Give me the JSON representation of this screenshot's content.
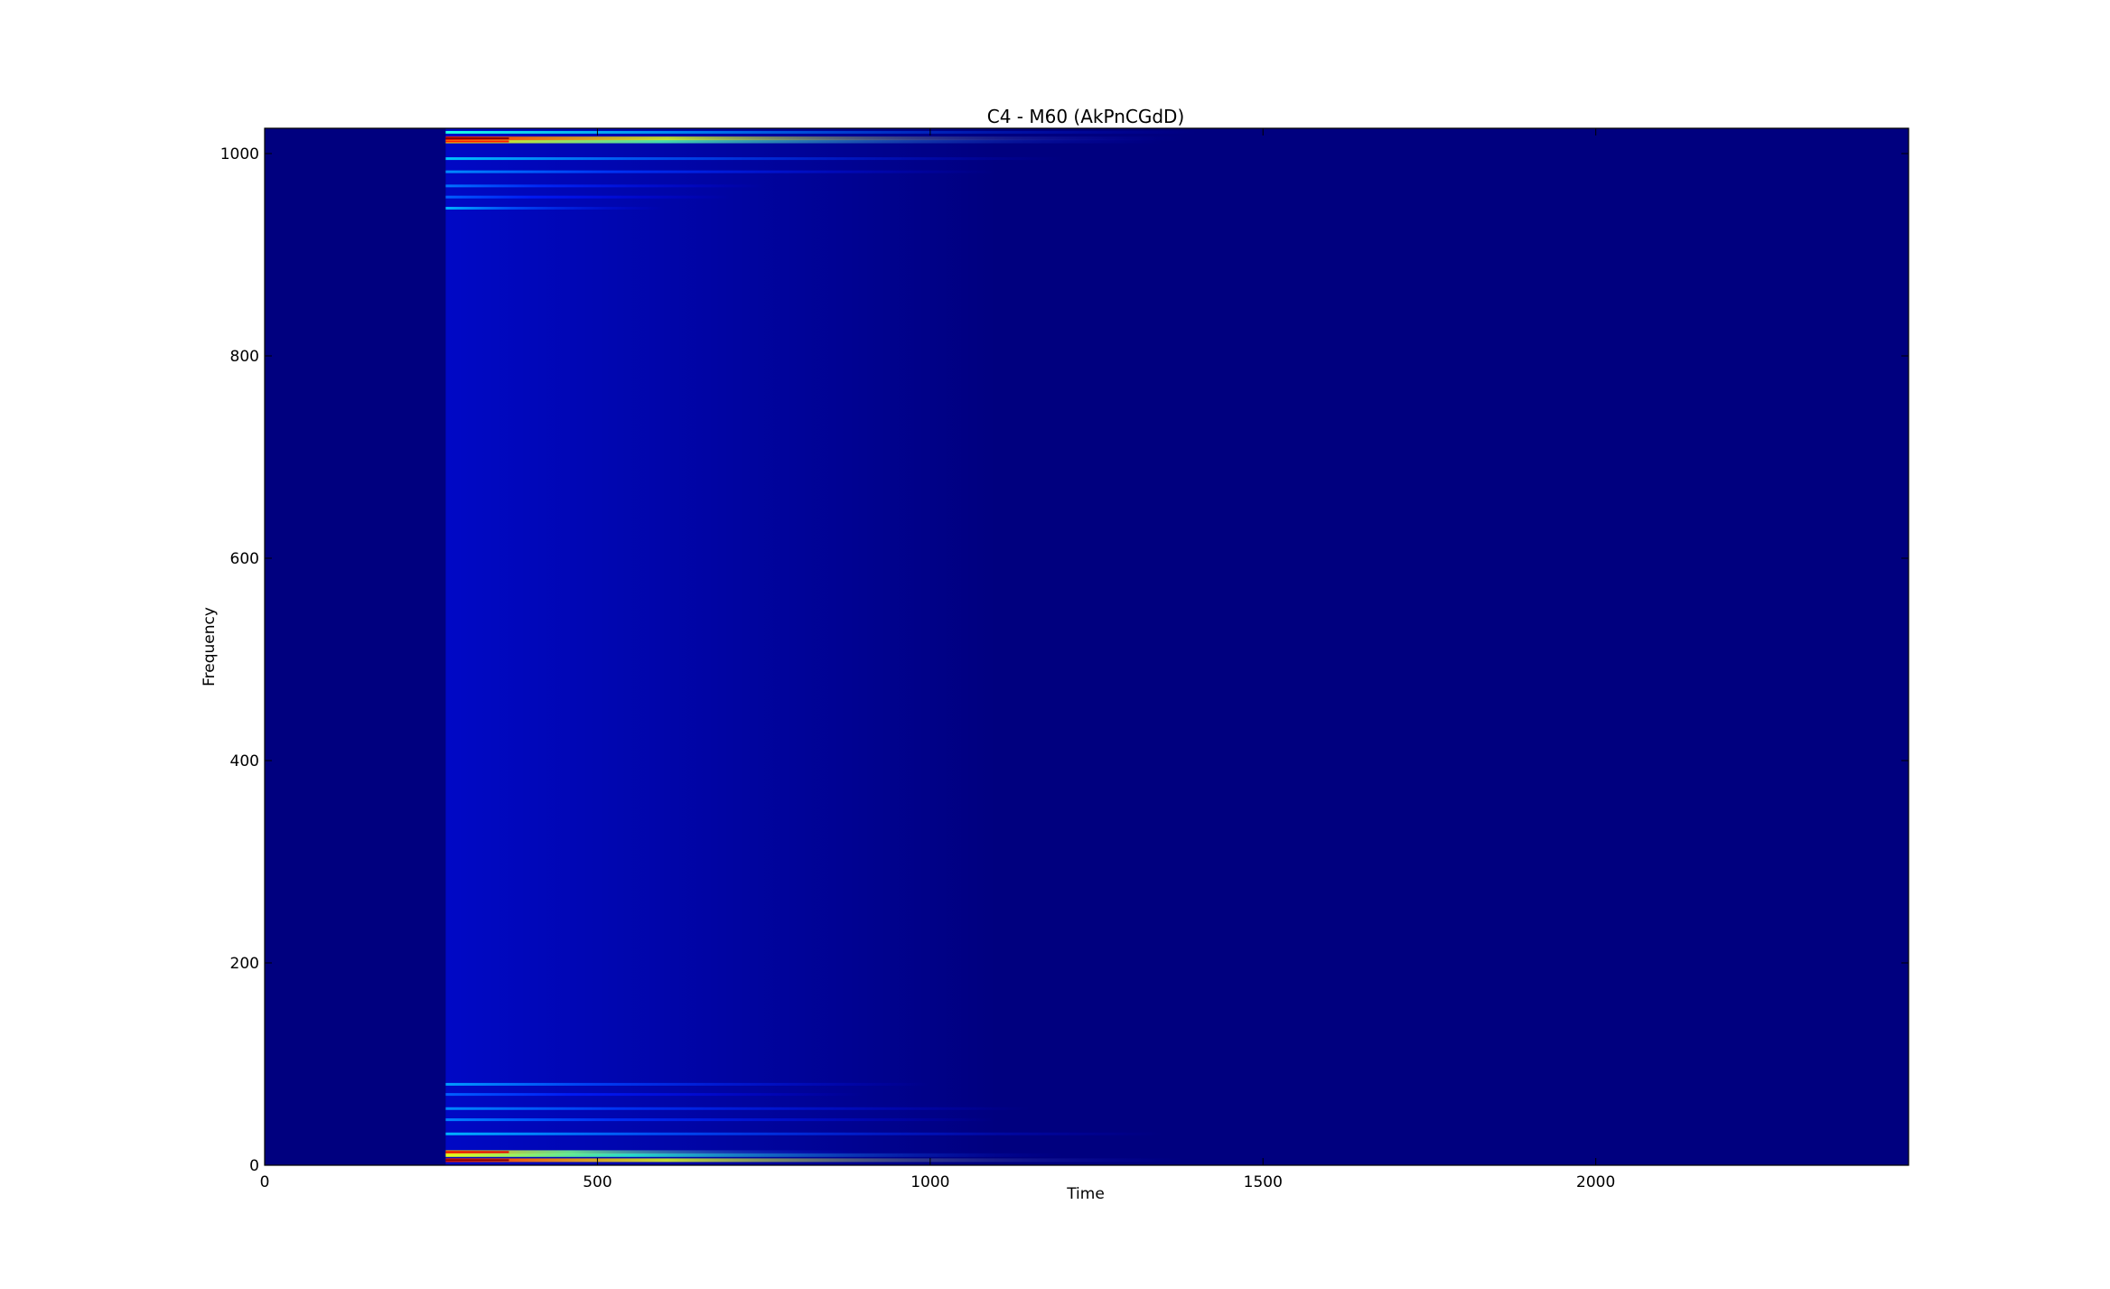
{
  "chart_data": {
    "type": "heatmap",
    "title": "C4 - M60 (AkPnCGdD)",
    "xlabel": "Time",
    "ylabel": "Frequency",
    "xlim": [
      0,
      2470
    ],
    "ylim": [
      0,
      1025
    ],
    "x_ticks": [
      0,
      500,
      1000,
      1500,
      2000
    ],
    "y_ticks": [
      0,
      200,
      400,
      600,
      800,
      1000
    ],
    "x_tick_labels": [
      "0",
      "500",
      "1000",
      "1500",
      "2000"
    ],
    "y_tick_labels": [
      "0",
      "200",
      "400",
      "600",
      "800",
      "1000"
    ],
    "colormap": "jet",
    "background_color": "#00007f",
    "grid": false,
    "onset_time": 272,
    "bands": [
      {
        "freq": 5,
        "start": 272,
        "end": 1380,
        "intensity": 0.85
      },
      {
        "freq": 10,
        "start": 272,
        "end": 1200,
        "intensity": 0.6
      },
      {
        "freq": 13,
        "start": 272,
        "end": 900,
        "intensity": 0.7
      },
      {
        "freq": 31,
        "start": 272,
        "end": 1350,
        "intensity": 0.3
      },
      {
        "freq": 45,
        "start": 272,
        "end": 1100,
        "intensity": 0.25
      },
      {
        "freq": 56,
        "start": 272,
        "end": 1150,
        "intensity": 0.26
      },
      {
        "freq": 70,
        "start": 272,
        "end": 900,
        "intensity": 0.22
      },
      {
        "freq": 80,
        "start": 272,
        "end": 1000,
        "intensity": 0.28
      },
      {
        "freq": 946,
        "start": 272,
        "end": 600,
        "intensity": 0.3
      },
      {
        "freq": 957,
        "start": 272,
        "end": 700,
        "intensity": 0.22
      },
      {
        "freq": 968,
        "start": 272,
        "end": 750,
        "intensity": 0.24
      },
      {
        "freq": 982,
        "start": 272,
        "end": 1100,
        "intensity": 0.26
      },
      {
        "freq": 995,
        "start": 272,
        "end": 1200,
        "intensity": 0.32
      },
      {
        "freq": 1012,
        "start": 272,
        "end": 1350,
        "intensity": 0.65
      },
      {
        "freq": 1015,
        "start": 272,
        "end": 1380,
        "intensity": 0.85
      },
      {
        "freq": 1021,
        "start": 272,
        "end": 1400,
        "intensity": 0.4
      }
    ]
  }
}
